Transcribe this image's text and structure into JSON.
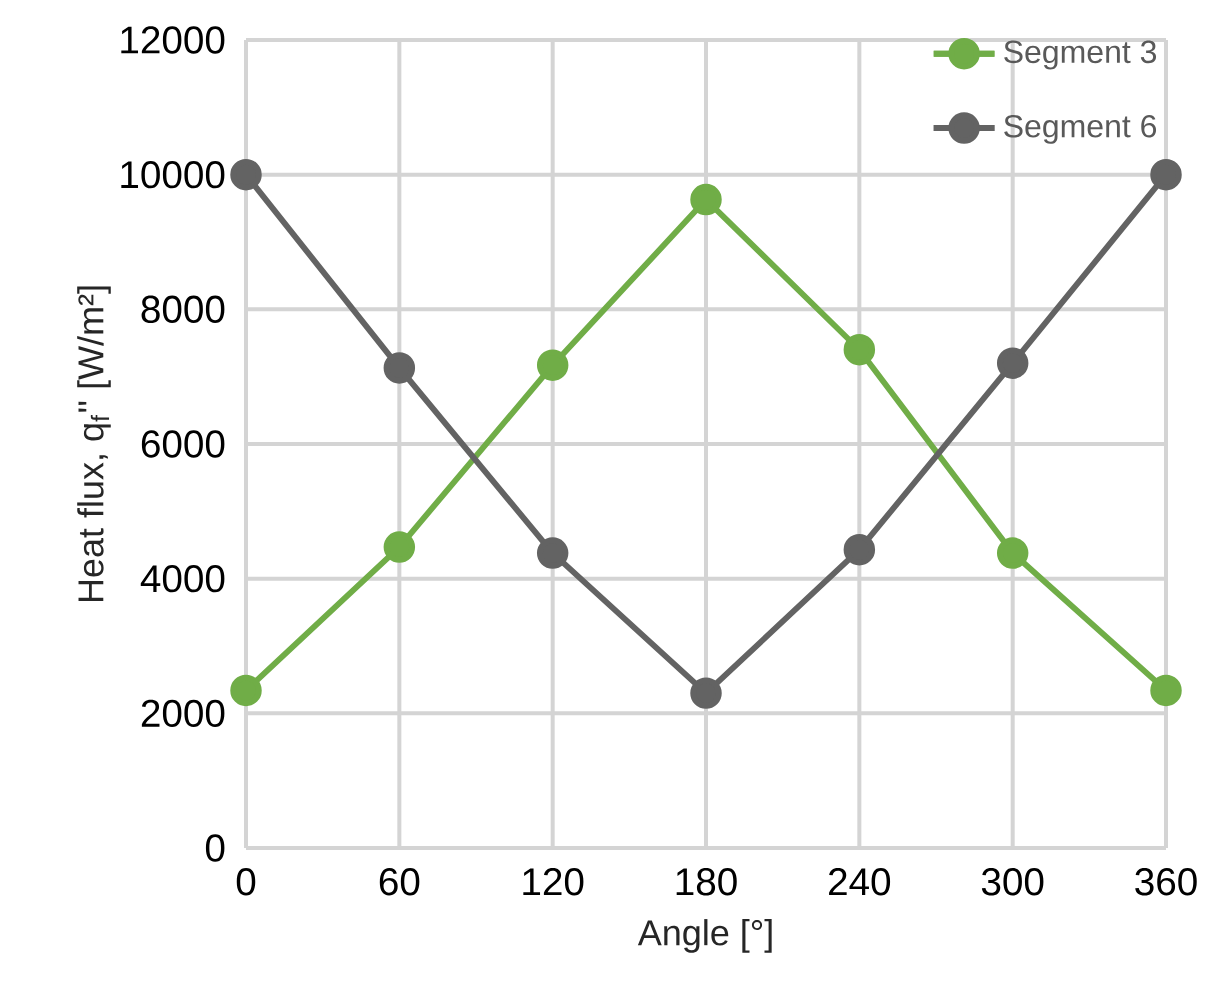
{
  "chart_data": {
    "type": "line",
    "xlabel": "Angle [°]",
    "ylabel": "Heat flux, q$_{f}$'' [W/m²]",
    "x": [
      0,
      60,
      120,
      180,
      240,
      300,
      360
    ],
    "series": [
      {
        "name": "Segment 3",
        "color": "#70ad47",
        "values": [
          2340,
          4470,
          7170,
          9630,
          7400,
          4380,
          2340
        ]
      },
      {
        "name": "Segment 6",
        "color": "#636363",
        "values": [
          10000,
          7130,
          4380,
          2300,
          4430,
          7200,
          10000
        ]
      }
    ],
    "xlim": [
      0,
      360
    ],
    "xticks": [
      0,
      60,
      120,
      180,
      240,
      300,
      360
    ],
    "ylim": [
      0,
      12000
    ],
    "yticks": [
      0,
      2000,
      4000,
      6000,
      8000,
      10000,
      12000
    ],
    "grid": true,
    "legend": "top right",
    "marker": "circle",
    "line_style": "solid"
  }
}
